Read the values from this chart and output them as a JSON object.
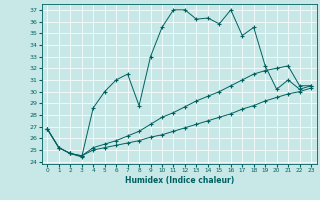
{
  "xlabel": "Humidex (Indice chaleur)",
  "bg_color": "#c8e8e8",
  "line_color": "#006060",
  "xlim": [
    -0.5,
    23.5
  ],
  "ylim": [
    23.8,
    37.5
  ],
  "yticks": [
    24,
    25,
    26,
    27,
    28,
    29,
    30,
    31,
    32,
    33,
    34,
    35,
    36,
    37
  ],
  "xticks": [
    0,
    1,
    2,
    3,
    4,
    5,
    6,
    7,
    8,
    9,
    10,
    11,
    12,
    13,
    14,
    15,
    16,
    17,
    18,
    19,
    20,
    21,
    22,
    23
  ],
  "series": [
    {
      "x": [
        0,
        1,
        2,
        3,
        4,
        5,
        6,
        7,
        8,
        9,
        10,
        11,
        12,
        13,
        14,
        15,
        16,
        17,
        18,
        19,
        20,
        21,
        22,
        23
      ],
      "y": [
        26.8,
        25.2,
        24.7,
        24.4,
        28.6,
        30.0,
        31.0,
        31.5,
        28.8,
        33.0,
        35.5,
        37.0,
        37.0,
        36.2,
        36.3,
        35.8,
        37.0,
        34.8,
        35.5,
        32.2,
        30.2,
        31.0,
        30.2,
        30.5
      ]
    },
    {
      "x": [
        0,
        1,
        2,
        3,
        4,
        5,
        6,
        7,
        8,
        9,
        10,
        11,
        12,
        13,
        14,
        15,
        16,
        17,
        18,
        19,
        20,
        21,
        22,
        23
      ],
      "y": [
        26.8,
        25.2,
        24.7,
        24.5,
        25.2,
        25.5,
        25.8,
        26.2,
        26.6,
        27.2,
        27.8,
        28.2,
        28.7,
        29.2,
        29.6,
        30.0,
        30.5,
        31.0,
        31.5,
        31.8,
        32.0,
        32.2,
        30.5,
        30.5
      ]
    },
    {
      "x": [
        0,
        1,
        2,
        3,
        4,
        5,
        6,
        7,
        8,
        9,
        10,
        11,
        12,
        13,
        14,
        15,
        16,
        17,
        18,
        19,
        20,
        21,
        22,
        23
      ],
      "y": [
        26.8,
        25.2,
        24.7,
        24.5,
        25.0,
        25.2,
        25.4,
        25.6,
        25.8,
        26.1,
        26.3,
        26.6,
        26.9,
        27.2,
        27.5,
        27.8,
        28.1,
        28.5,
        28.8,
        29.2,
        29.5,
        29.8,
        30.0,
        30.3
      ]
    }
  ]
}
